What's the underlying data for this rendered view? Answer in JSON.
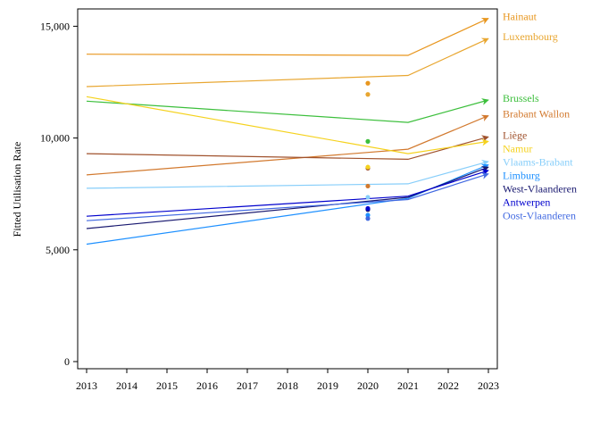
{
  "chart_data": {
    "type": "line",
    "ylabel": "Fitted Utilisation Rate",
    "xlabel": "",
    "x_ticks": [
      "2013",
      "2014",
      "2015",
      "2016",
      "2017",
      "2018",
      "2019",
      "2020",
      "2021",
      "2022",
      "2023"
    ],
    "y_ticks": [
      {
        "value": 0,
        "label": "0"
      },
      {
        "value": 5000,
        "label": "5,000"
      },
      {
        "value": 10000,
        "label": "10,000"
      },
      {
        "value": 15000,
        "label": "15,000"
      }
    ],
    "xlim": [
      2013,
      2023
    ],
    "ylim": [
      -400,
      15800
    ],
    "grid": false,
    "legend_placement": "right, labels at line ends",
    "series": [
      {
        "name": "Hainaut",
        "color": "#e8961e",
        "x": [
          2013,
          2021,
          2023
        ],
        "y": [
          13750,
          13700,
          15350
        ],
        "point_2020": 12450
      },
      {
        "name": "Luxembourg",
        "color": "#e8a630",
        "x": [
          2013,
          2021,
          2023
        ],
        "y": [
          12300,
          12800,
          14450
        ],
        "point_2020": 11950
      },
      {
        "name": "Brussels",
        "color": "#3cbf3c",
        "x": [
          2013,
          2021,
          2023
        ],
        "y": [
          11650,
          10700,
          11700
        ],
        "point_2020": 9850
      },
      {
        "name": "Brabant Wallon",
        "color": "#d2792e",
        "x": [
          2013,
          2021,
          2023
        ],
        "y": [
          8350,
          9500,
          11000
        ],
        "point_2020": 7850
      },
      {
        "name": "Liège",
        "color": "#a0522d",
        "x": [
          2013,
          2021,
          2023
        ],
        "y": [
          9300,
          9050,
          10050
        ],
        "point_2020": 8650
      },
      {
        "name": "Namur",
        "color": "#f5d21e",
        "x": [
          2013,
          2021,
          2023
        ],
        "y": [
          11850,
          9300,
          9850
        ],
        "point_2020": 8700
      },
      {
        "name": "Vlaams-Brabant",
        "color": "#87cefa",
        "x": [
          2013,
          2021,
          2023
        ],
        "y": [
          7750,
          7950,
          8950
        ],
        "point_2020": 7350
      },
      {
        "name": "Limburg",
        "color": "#1e90ff",
        "x": [
          2013,
          2021,
          2023
        ],
        "y": [
          5250,
          7300,
          8800
        ],
        "point_2020": 6550
      },
      {
        "name": "West-Vlaanderen",
        "color": "#191970",
        "x": [
          2013,
          2021,
          2023
        ],
        "y": [
          5950,
          7350,
          8700
        ],
        "point_2020": 6800
      },
      {
        "name": "Antwerpen",
        "color": "#0000cd",
        "x": [
          2013,
          2021,
          2023
        ],
        "y": [
          6500,
          7400,
          8550
        ],
        "point_2020": 6850
      },
      {
        "name": "Oost-Vlaanderen",
        "color": "#4169e1",
        "x": [
          2013,
          2021,
          2023
        ],
        "y": [
          6300,
          7250,
          8400
        ],
        "point_2020": 6400
      }
    ]
  }
}
